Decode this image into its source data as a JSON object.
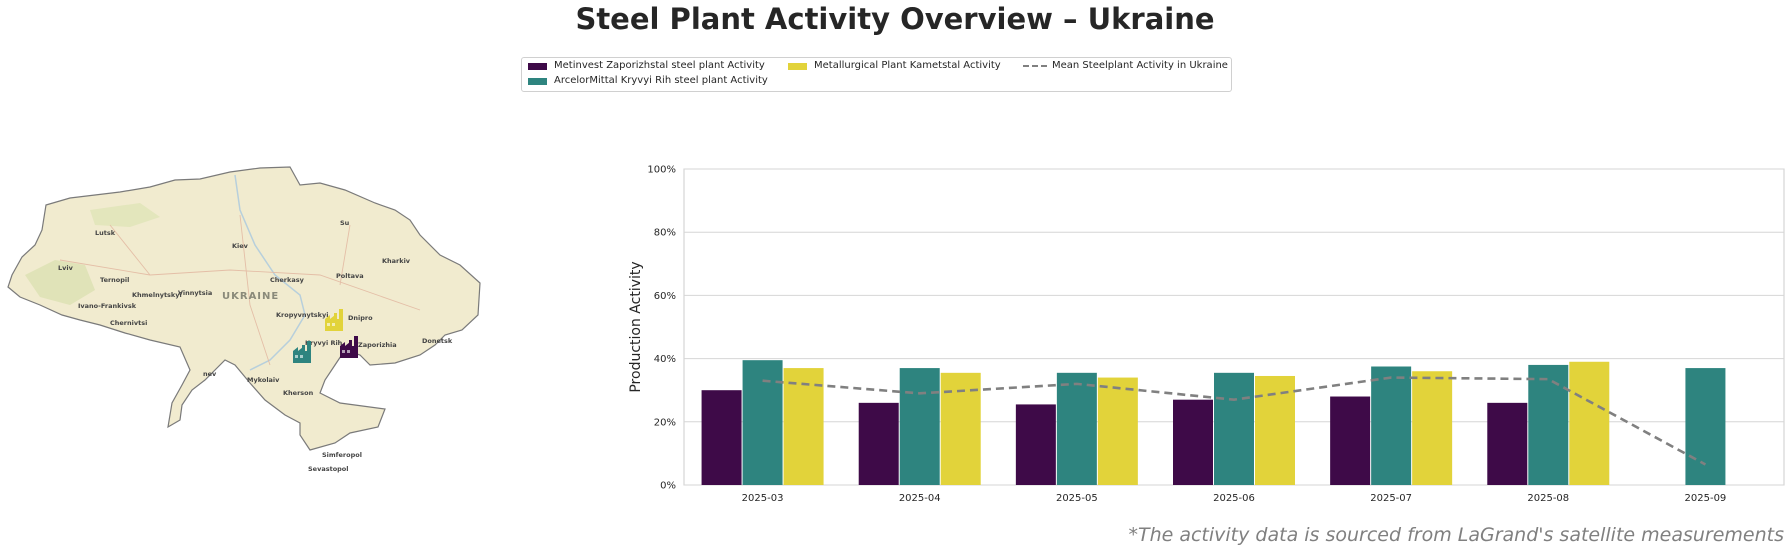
{
  "title": "Steel Plant Activity Overview – Ukraine",
  "source_note": "*The activity data is sourced from LaGrand's satellite measurements",
  "colors": {
    "metinvest": "#3e0a48",
    "arcelor": "#2e847f",
    "kametstal": "#e2d33a",
    "mean": "#808080",
    "map_land": "#f1ebcf",
    "map_border": "#7a7a7a"
  },
  "legend": [
    {
      "label": "Metinvest Zaporizhstal steel plant Activity",
      "type": "bar",
      "color": "#3e0a48"
    },
    {
      "label": "ArcelorMittal Kryvyi Rih steel plant Activity",
      "type": "bar",
      "color": "#2e847f"
    },
    {
      "label": "Metallurgical Plant Kametstal Activity",
      "type": "bar",
      "color": "#e2d33a"
    },
    {
      "label": "Mean Steelplant Activity in Ukraine",
      "type": "dashed-line",
      "color": "#808080"
    }
  ],
  "map": {
    "country_label": "UKRAINE",
    "cities": [
      "Lutsk",
      "Kiev",
      "Kharkiv",
      "Lviv",
      "Ternopil",
      "Khmelnytskyi",
      "Vinnytsia",
      "Ivano-Frankivsk",
      "Cherkasy",
      "Poltava",
      "Chernivtsi",
      "Kropyvnytskyi",
      "Dnipro",
      "Donetsk",
      "Kryvyi Rih",
      "Zaporizhia",
      "Mykolaiv",
      "Kherson",
      "Simferopol",
      "Sevastopol",
      "Su",
      "nev"
    ],
    "plant_icons": [
      {
        "name": "Metinvest Zaporizhstal",
        "color": "#3e0a48"
      },
      {
        "name": "ArcelorMittal Kryvyi Rih",
        "color": "#2e847f"
      },
      {
        "name": "Metallurgical Plant Kametstal",
        "color": "#e2d33a"
      }
    ]
  },
  "chart_data": {
    "type": "bar",
    "categories": [
      "2025-03",
      "2025-04",
      "2025-05",
      "2025-06",
      "2025-07",
      "2025-08",
      "2025-09"
    ],
    "series": [
      {
        "name": "Metinvest Zaporizhstal steel plant Activity",
        "color": "#3e0a48",
        "values": [
          30,
          26,
          25.5,
          27,
          28,
          26,
          null
        ]
      },
      {
        "name": "ArcelorMittal Kryvyi Rih steel plant Activity",
        "color": "#2e847f",
        "values": [
          39.5,
          37,
          35.5,
          35.5,
          37.5,
          38,
          37
        ]
      },
      {
        "name": "Metallurgical Plant Kametstal Activity",
        "color": "#e2d33a",
        "values": [
          37,
          35.5,
          34,
          34.5,
          36,
          39,
          null
        ]
      }
    ],
    "line": {
      "name": "Mean Steelplant Activity in Ukraine",
      "type": "line",
      "style": "dashed",
      "color": "#808080",
      "values": [
        33,
        29,
        32,
        27,
        34,
        33.5,
        6.5
      ]
    },
    "ylabel": "Production Activity",
    "xlabel": "",
    "ylim": [
      0,
      100
    ],
    "yticks": [
      0,
      20,
      40,
      60,
      80,
      100
    ],
    "ytick_labels": [
      "0%",
      "20%",
      "40%",
      "60%",
      "80%",
      "100%"
    ],
    "grid": "horizontal",
    "legend_position": "top-center"
  }
}
